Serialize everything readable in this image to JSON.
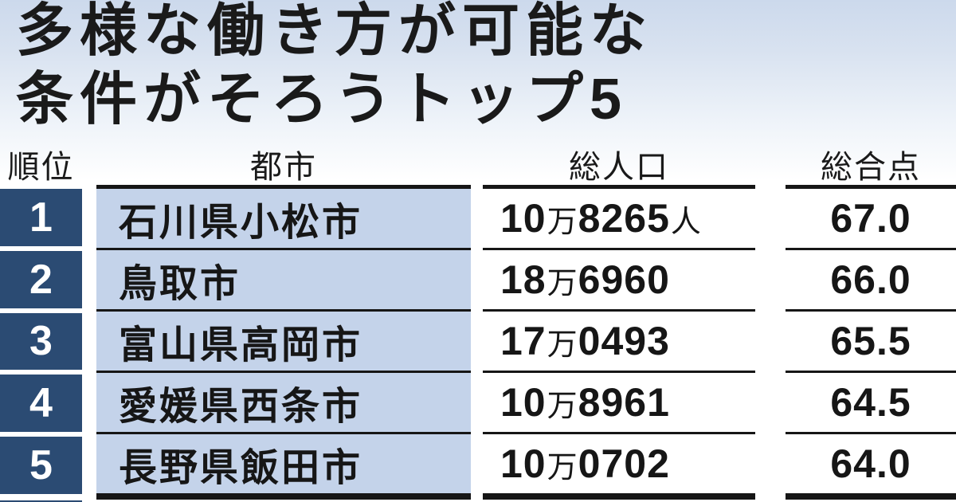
{
  "title": {
    "line1": "多様な働き方が可能な",
    "line2": "条件がそろうトップ5"
  },
  "table": {
    "headers": {
      "rank": "順位",
      "city": "都市",
      "population": "総人口",
      "score": "総合点"
    },
    "rows": [
      {
        "rank": "1",
        "city": "石川県小松市",
        "pop_man": "10",
        "pop_unit": "万",
        "pop_rest": "8265",
        "pop_suffix": "人",
        "score": "67.0"
      },
      {
        "rank": "2",
        "city": "鳥取市",
        "pop_man": "18",
        "pop_unit": "万",
        "pop_rest": "6960",
        "pop_suffix": "",
        "score": "66.0"
      },
      {
        "rank": "3",
        "city": "富山県高岡市",
        "pop_man": "17",
        "pop_unit": "万",
        "pop_rest": "0493",
        "pop_suffix": "",
        "score": "65.5"
      },
      {
        "rank": "4",
        "city": "愛媛県西条市",
        "pop_man": "10",
        "pop_unit": "万",
        "pop_rest": "8961",
        "pop_suffix": "",
        "score": "64.5"
      },
      {
        "rank": "5",
        "city": "長野県飯田市",
        "pop_man": "10",
        "pop_unit": "万",
        "pop_rest": "0702",
        "pop_suffix": "",
        "score": "64.0"
      }
    ]
  },
  "colors": {
    "navy_rank_box": "#2b4b73",
    "city_cell_blue": "#c4d3ea",
    "rule_line": "#161616",
    "background_top": "#ccd9ec",
    "background_bottom": "#ffffff"
  },
  "chart_data": {
    "type": "table",
    "title": "多様な働き方が可能な条件がそろうトップ5",
    "columns": [
      "順位",
      "都市",
      "総人口",
      "総合点"
    ],
    "rows": [
      [
        "1",
        "石川県小松市",
        "10万8265人",
        "67.0"
      ],
      [
        "2",
        "鳥取市",
        "18万6960",
        "66.0"
      ],
      [
        "3",
        "富山県高岡市",
        "17万0493",
        "65.5"
      ],
      [
        "4",
        "愛媛県西条市",
        "10万8961",
        "64.5"
      ],
      [
        "5",
        "長野県飯田市",
        "10万0702",
        "64.0"
      ]
    ],
    "scores": [
      67.0,
      66.0,
      65.5,
      64.5,
      64.0
    ],
    "populations": [
      108265,
      186960,
      170493,
      108961,
      100702
    ]
  }
}
